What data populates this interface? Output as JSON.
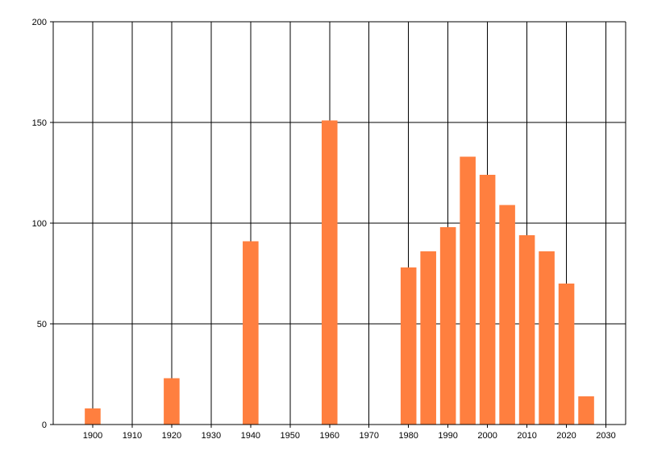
{
  "chart_data": {
    "type": "bar",
    "title": "",
    "xlabel": "",
    "ylabel": "",
    "x": [
      1900,
      1920,
      1940,
      1960,
      1980,
      1985,
      1990,
      1995,
      2000,
      2005,
      2010,
      2015,
      2020,
      2025
    ],
    "values": [
      8,
      23,
      91,
      151,
      78,
      86,
      98,
      133,
      124,
      109,
      94,
      86,
      70,
      14
    ],
    "xlim": [
      1890,
      2035
    ],
    "ylim": [
      0,
      200
    ],
    "x_ticks": [
      1900,
      1910,
      1920,
      1930,
      1940,
      1950,
      1960,
      1970,
      1980,
      1990,
      2000,
      2010,
      2020,
      2030
    ],
    "x_tick_labels": [
      "1900",
      "1910",
      "1920",
      "1930",
      "1940",
      "1950",
      "1960",
      "1970",
      "1980",
      "1990",
      "2000",
      "2010",
      "2020",
      "2030"
    ],
    "y_ticks": [
      0,
      50,
      100,
      150,
      200
    ],
    "y_tick_labels": [
      "0",
      "50",
      "100",
      "150",
      "200"
    ],
    "grid": true,
    "legend": "none",
    "bar_color": "#ff7f3f",
    "grid_color": "#000000"
  }
}
